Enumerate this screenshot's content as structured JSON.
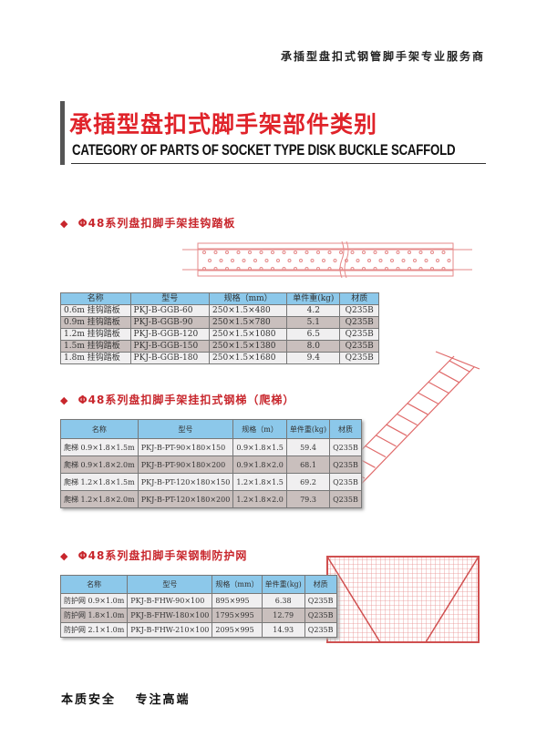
{
  "header": {
    "tagline": "承插型盘扣式钢管脚手架专业服务商",
    "title_cn": "承插型盘扣式脚手架部件类别",
    "title_en": "CATEGORY OF PARTS OF SOCKET TYPE DISK BUCKLE SCAFFOLD"
  },
  "colors": {
    "accent": "#e0232a",
    "table_header": "#8cc8ea",
    "row_light": "#f0eff0",
    "row_dark": "#c9bfbd"
  },
  "sections": [
    {
      "title": "Φ48系列盘扣脚手架挂钩踏板",
      "icon": "diamond-icon",
      "headers": [
        "名称",
        "型号",
        "规格（mm）",
        "单件重(kg)",
        "材质"
      ],
      "rows": [
        [
          "0.6m 挂钩踏板",
          "PKJ-B-GGB-60",
          "250×1.5×480",
          "4.2",
          "Q235B"
        ],
        [
          "0.9m 挂钩踏板",
          "PKJ-B-GGB-90",
          "250×1.5×780",
          "5.1",
          "Q235B"
        ],
        [
          "1.2m 挂钩踏板",
          "PKJ-B-GGB-120",
          "250×1.5×1080",
          "6.5",
          "Q235B"
        ],
        [
          "1.5m 挂钩踏板",
          "PKJ-B-GGB-150",
          "250×1.5×1380",
          "8.0",
          "Q235B"
        ],
        [
          "1.8m 挂钩踏板",
          "PKJ-B-GGB-180",
          "250×1.5×1680",
          "9.4",
          "Q235B"
        ]
      ]
    },
    {
      "title": "Φ48系列盘扣脚手架挂扣式钢梯（爬梯）",
      "icon": "diamond-icon",
      "headers": [
        "名称",
        "型号",
        "规格（m）",
        "单件重(kg)",
        "材质"
      ],
      "rows": [
        [
          "爬梯 0.9×1.8×1.5m",
          "PKJ-B-PT-90×180×150",
          "0.9×1.8×1.5",
          "59.4",
          "Q235B"
        ],
        [
          "爬梯 0.9×1.8×2.0m",
          "PKJ-B-PT-90×180×200",
          "0.9×1.8×2.0",
          "68.1",
          "Q235B"
        ],
        [
          "爬梯 1.2×1.8×1.5m",
          "PKJ-B-PT-120×180×150",
          "1.2×1.8×1.5",
          "69.2",
          "Q235B"
        ],
        [
          "爬梯 1.2×1.8×2.0m",
          "PKJ-B-PT-120×180×200",
          "1.2×1.8×2.0",
          "79.3",
          "Q235B"
        ]
      ]
    },
    {
      "title": "Φ48系列盘扣脚手架钢制防护网",
      "icon": "diamond-icon",
      "headers": [
        "名称",
        "型号",
        "规格（mm）",
        "单件重(kg)",
        "材质"
      ],
      "rows": [
        [
          "防护网 0.9×1.0m",
          "PKJ-B-FHW-90×100",
          "895×995",
          "6.38",
          "Q235B"
        ],
        [
          "防护网 1.8×1.0m",
          "PKJ-B-FHW-180×100",
          "1795×995",
          "12.79",
          "Q235B"
        ],
        [
          "防护网 2.1×1.0m",
          "PKJ-B-FHW-210×100",
          "2095×995",
          "14.93",
          "Q235B"
        ]
      ]
    }
  ],
  "footer": {
    "slogan": "本质安全　 专注高端"
  }
}
